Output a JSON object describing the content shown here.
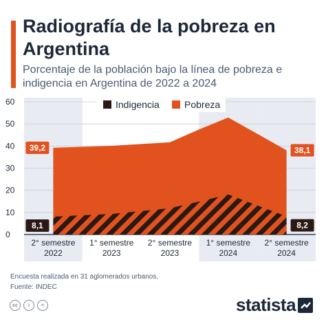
{
  "header": {
    "title": "Radiografía de la pobreza en Argentina",
    "subtitle": "Porcentaje de la población bajo la línea de pobreza e indigencia en Argentina de 2022 a 2024"
  },
  "chart_data": {
    "type": "area",
    "categories": [
      "2° semestre 2022",
      "1° semestre 2023",
      "2° semestre 2023",
      "1° semestre 2024",
      "2° semestre 2024"
    ],
    "category_lines": [
      [
        "2° semestre",
        "2022"
      ],
      [
        "1° semestre",
        "2023"
      ],
      [
        "2° semestre",
        "2023"
      ],
      [
        "1° semestre",
        "2024"
      ],
      [
        "2° semestre",
        "2024"
      ]
    ],
    "x": [
      0,
      1,
      2,
      2.5,
      3,
      4
    ],
    "series": [
      {
        "name": "Pobreza",
        "color": "#e2521f",
        "values": [
          39.2,
          40.1,
          41.7,
          47.5,
          52.9,
          38.1
        ]
      },
      {
        "name": "Indigencia",
        "color": "#2b1a14",
        "pattern": "diagonal-stripes",
        "values": [
          8.1,
          9.3,
          11.9,
          14.9,
          18.1,
          8.2
        ]
      }
    ],
    "ylim": [
      0,
      60
    ],
    "yticks": [
      0,
      10,
      20,
      30,
      40,
      50,
      60
    ],
    "grid": true,
    "legend": "top-center",
    "highlighted_categories": [
      0,
      3,
      4
    ],
    "data_labels": [
      {
        "text": "39,2",
        "series": "Pobreza",
        "side": "left"
      },
      {
        "text": "38,1",
        "series": "Pobreza",
        "side": "right"
      },
      {
        "text": "8,1",
        "series": "Indigencia",
        "side": "left"
      },
      {
        "text": "8,2",
        "series": "Indigencia",
        "side": "right"
      }
    ]
  },
  "footer": {
    "note": "Encuesta realizada en 31 aglomerados urbanos.",
    "source": "Fuente: INDEC",
    "license_icons": [
      "creative-commons-icon",
      "attribution-icon",
      "no-derivatives-icon"
    ],
    "license_glyphs": [
      "cc",
      "i",
      "="
    ],
    "logo_text": "statista"
  },
  "colors": {
    "accent": "#e2521f",
    "dark": "#2b1a14",
    "highlight_band": "#e8ebf2",
    "text": "#1c2738"
  }
}
